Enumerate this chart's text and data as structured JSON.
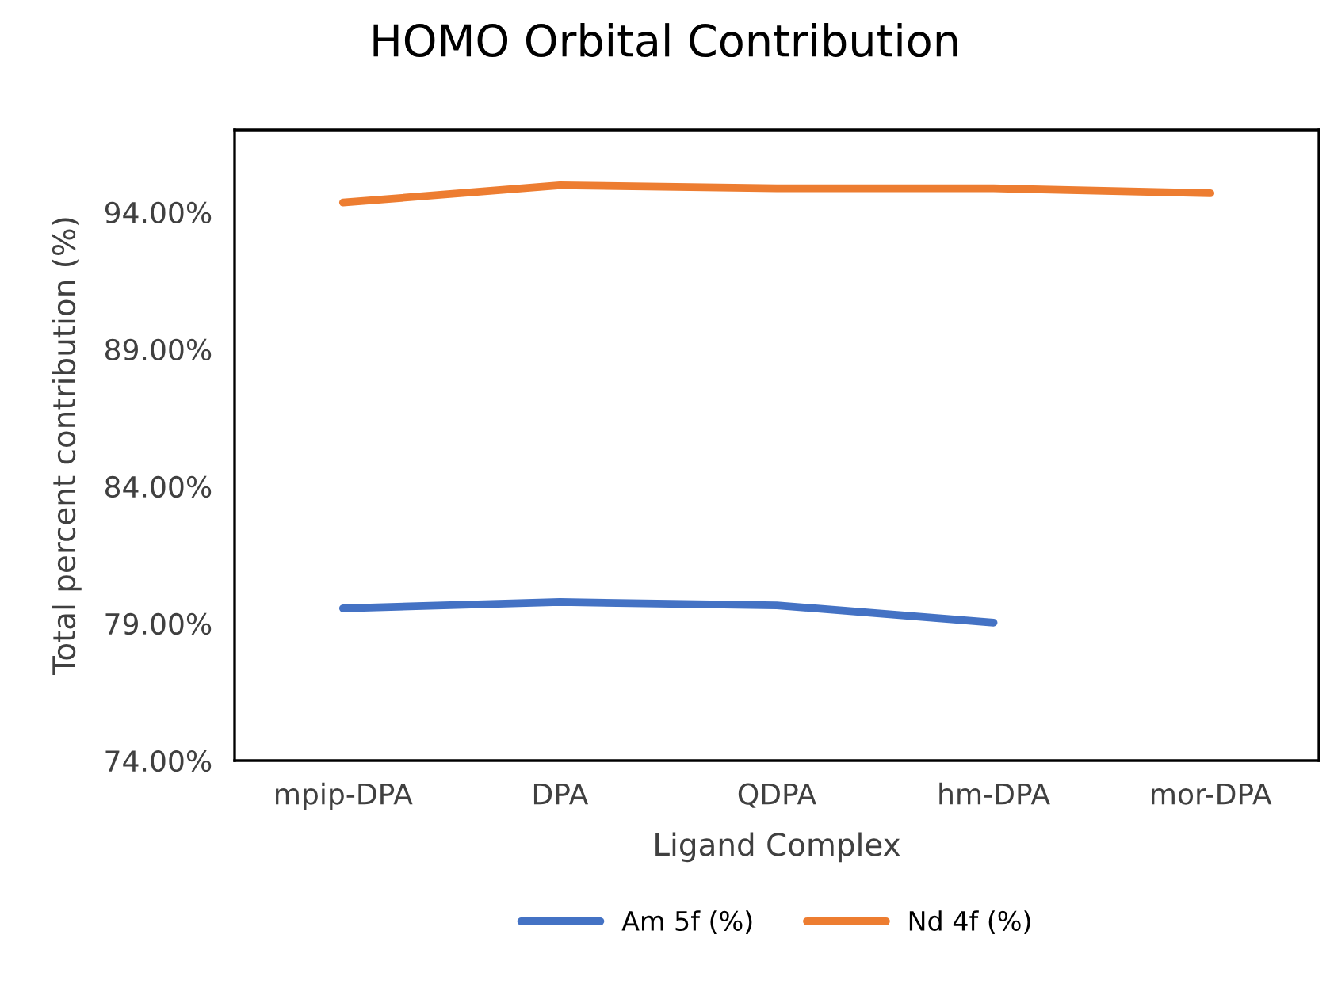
{
  "chart_data": {
    "type": "line",
    "title": "HOMO Orbital Contribution",
    "xlabel": "Ligand Complex",
    "ylabel": "Total percent contribution (%)",
    "categories": [
      "mpip-DPA",
      "DPA",
      "QDPA",
      "hm-DPA",
      "mor-DPA"
    ],
    "series": [
      {
        "name": "Am 5f (%)",
        "color": "#4472c4",
        "values": [
          79.55,
          79.78,
          79.66,
          79.03,
          null
        ]
      },
      {
        "name": "Nd 4f (%)",
        "color": "#ed7d31",
        "values": [
          94.35,
          94.98,
          94.87,
          94.87,
          94.69
        ]
      }
    ],
    "ylim": [
      74,
      97
    ],
    "yticks": [
      {
        "value": 74,
        "label": "74.00%"
      },
      {
        "value": 79,
        "label": "79.00%"
      },
      {
        "value": 84,
        "label": "84.00%"
      },
      {
        "value": 89,
        "label": "89.00%"
      },
      {
        "value": 94,
        "label": "94.00%"
      }
    ],
    "grid": false,
    "legend": "bottom",
    "marker": "none",
    "line_style": "solid"
  }
}
